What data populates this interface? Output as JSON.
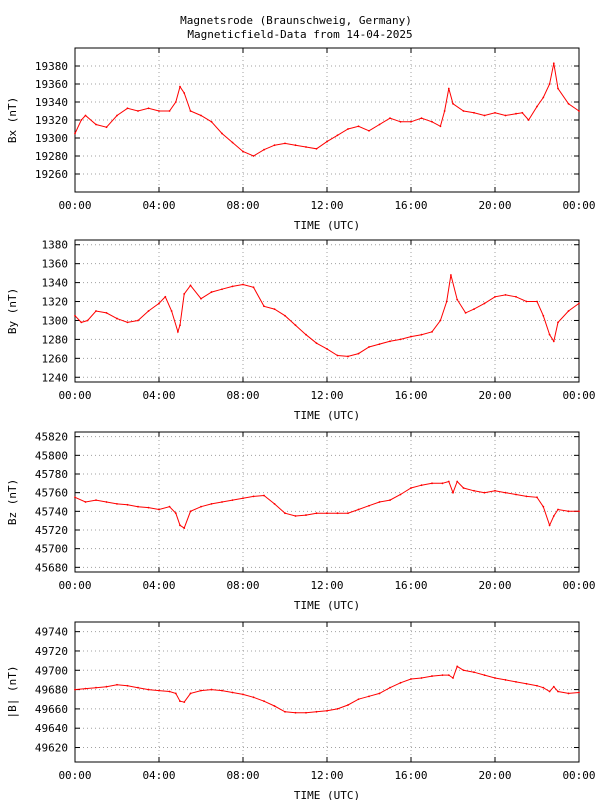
{
  "title_line1": "Magnetsrode (Braunschweig, Germany)",
  "title_line2": "Magneticfield-Data from 14-04-2025",
  "series_color": "#ff0000",
  "chart_data": [
    {
      "type": "line",
      "ylabel": "Bx (nT)",
      "xlabel": "TIME (UTC)",
      "xlim": [
        0,
        24
      ],
      "xticks": [
        "00:00",
        "04:00",
        "08:00",
        "12:00",
        "16:00",
        "20:00",
        "00:00"
      ],
      "ylim": [
        19240,
        19400
      ],
      "yticks": [
        19260,
        19280,
        19300,
        19320,
        19340,
        19360,
        19380
      ],
      "x": [
        0,
        0.3,
        0.5,
        1,
        1.5,
        2,
        2.5,
        3,
        3.5,
        4,
        4.5,
        4.8,
        5,
        5.2,
        5.5,
        6,
        6.5,
        7,
        7.5,
        8,
        8.5,
        9,
        9.5,
        10,
        10.5,
        11,
        11.5,
        12,
        12.5,
        13,
        13.5,
        14,
        14.5,
        15,
        15.5,
        16,
        16.5,
        17,
        17.4,
        17.6,
        17.8,
        18,
        18.5,
        19,
        19.5,
        20,
        20.5,
        21,
        21.3,
        21.6,
        22,
        22.3,
        22.6,
        22.8,
        23,
        23.5,
        24
      ],
      "y": [
        19305,
        19320,
        19325,
        19315,
        19312,
        19325,
        19333,
        19330,
        19333,
        19330,
        19330,
        19340,
        19357,
        19350,
        19330,
        19325,
        19318,
        19305,
        19295,
        19285,
        19280,
        19287,
        19292,
        19294,
        19292,
        19290,
        19288,
        19296,
        19303,
        19310,
        19313,
        19308,
        19315,
        19322,
        19318,
        19318,
        19322,
        19318,
        19313,
        19330,
        19355,
        19338,
        19330,
        19328,
        19325,
        19328,
        19325,
        19327,
        19328,
        19320,
        19335,
        19345,
        19360,
        19383,
        19355,
        19338,
        19330
      ]
    },
    {
      "type": "line",
      "ylabel": "By (nT)",
      "xlabel": "TIME (UTC)",
      "xlim": [
        0,
        24
      ],
      "xticks": [
        "00:00",
        "04:00",
        "08:00",
        "12:00",
        "16:00",
        "20:00",
        "00:00"
      ],
      "ylim": [
        1235,
        1385
      ],
      "yticks": [
        1240,
        1260,
        1280,
        1300,
        1320,
        1340,
        1360,
        1380
      ],
      "x": [
        0,
        0.3,
        0.6,
        1,
        1.5,
        2,
        2.5,
        3,
        3.5,
        4,
        4.3,
        4.6,
        4.9,
        5,
        5.2,
        5.5,
        6,
        6.5,
        7,
        7.5,
        8,
        8.5,
        9,
        9.5,
        10,
        10.5,
        11,
        11.5,
        12,
        12.5,
        13,
        13.5,
        14,
        14.5,
        15,
        15.5,
        16,
        16.5,
        17,
        17.4,
        17.7,
        17.9,
        18.2,
        18.6,
        19,
        19.5,
        20,
        20.5,
        21,
        21.5,
        22,
        22.3,
        22.6,
        22.8,
        23,
        23.5,
        24
      ],
      "y": [
        1305,
        1298,
        1300,
        1310,
        1308,
        1302,
        1298,
        1300,
        1310,
        1318,
        1325,
        1310,
        1288,
        1295,
        1328,
        1337,
        1323,
        1330,
        1333,
        1336,
        1338,
        1335,
        1315,
        1312,
        1305,
        1295,
        1285,
        1276,
        1270,
        1263,
        1262,
        1265,
        1272,
        1275,
        1278,
        1280,
        1283,
        1285,
        1288,
        1300,
        1320,
        1348,
        1322,
        1308,
        1312,
        1318,
        1325,
        1327,
        1325,
        1320,
        1320,
        1305,
        1285,
        1278,
        1298,
        1310,
        1318
      ]
    },
    {
      "type": "line",
      "ylabel": "Bz (nT)",
      "xlabel": "TIME (UTC)",
      "xlim": [
        0,
        24
      ],
      "xticks": [
        "00:00",
        "04:00",
        "08:00",
        "12:00",
        "16:00",
        "20:00",
        "00:00"
      ],
      "ylim": [
        45675,
        45825
      ],
      "yticks": [
        45680,
        45700,
        45720,
        45740,
        45760,
        45780,
        45800,
        45820
      ],
      "x": [
        0,
        0.5,
        1,
        1.5,
        2,
        2.5,
        3,
        3.5,
        4,
        4.5,
        4.8,
        5,
        5.2,
        5.5,
        6,
        6.5,
        7,
        7.5,
        8,
        8.5,
        9,
        9.5,
        10,
        10.5,
        11,
        11.5,
        12,
        12.5,
        13,
        13.5,
        14,
        14.5,
        15,
        15.5,
        16,
        16.5,
        17,
        17.5,
        17.8,
        18,
        18.2,
        18.5,
        19,
        19.5,
        20,
        20.5,
        21,
        21.5,
        22,
        22.3,
        22.6,
        22.8,
        23,
        23.5,
        24
      ],
      "y": [
        45755,
        45750,
        45752,
        45750,
        45748,
        45747,
        45745,
        45744,
        45742,
        45745,
        45738,
        45725,
        45722,
        45740,
        45745,
        45748,
        45750,
        45752,
        45754,
        45756,
        45757,
        45748,
        45738,
        45735,
        45736,
        45738,
        45738,
        45738,
        45738,
        45742,
        45746,
        45750,
        45752,
        45758,
        45765,
        45768,
        45770,
        45770,
        45772,
        45760,
        45772,
        45765,
        45762,
        45760,
        45762,
        45760,
        45758,
        45756,
        45755,
        45745,
        45725,
        45735,
        45742,
        45740,
        45740
      ]
    },
    {
      "type": "line",
      "ylabel": "|B| (nT)",
      "xlabel": "TIME (UTC)",
      "xlim": [
        0,
        24
      ],
      "xticks": [
        "00:00",
        "04:00",
        "08:00",
        "12:00",
        "16:00",
        "20:00",
        "00:00"
      ],
      "ylim": [
        49605,
        49750
      ],
      "yticks": [
        49620,
        49640,
        49660,
        49680,
        49700,
        49720,
        49740
      ],
      "x": [
        0,
        0.5,
        1,
        1.5,
        2,
        2.5,
        3,
        3.5,
        4,
        4.5,
        4.8,
        5,
        5.2,
        5.5,
        6,
        6.5,
        7,
        7.5,
        8,
        8.5,
        9,
        9.5,
        10,
        10.5,
        11,
        11.5,
        12,
        12.5,
        13,
        13.5,
        14,
        14.5,
        15,
        15.5,
        16,
        16.5,
        17,
        17.5,
        17.8,
        18,
        18.2,
        18.5,
        19,
        19.5,
        20,
        20.5,
        21,
        21.5,
        22,
        22.3,
        22.6,
        22.8,
        23,
        23.5,
        24
      ],
      "y": [
        49680,
        49681,
        49682,
        49683,
        49685,
        49684,
        49682,
        49680,
        49679,
        49678,
        49676,
        49668,
        49667,
        49676,
        49679,
        49680,
        49679,
        49677,
        49675,
        49672,
        49668,
        49663,
        49657,
        49656,
        49656,
        49657,
        49658,
        49660,
        49664,
        49670,
        49673,
        49676,
        49682,
        49687,
        49691,
        49692,
        49694,
        49695,
        49695,
        49692,
        49704,
        49700,
        49698,
        49695,
        49692,
        49690,
        49688,
        49686,
        49684,
        49682,
        49678,
        49683,
        49678,
        49676,
        49677
      ]
    }
  ]
}
